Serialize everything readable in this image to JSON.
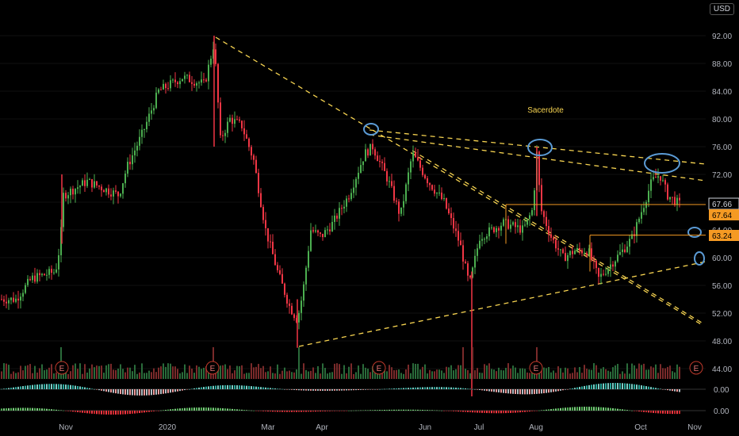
{
  "currency_label": "USD",
  "chart_data": {
    "type": "candlestick",
    "annotation": "Sacerdote",
    "x_ticks": [
      "Nov",
      "2020",
      "Mar",
      "Apr",
      "Jun",
      "Jul",
      "Aug",
      "Oct",
      "Nov"
    ],
    "y_axis": {
      "ticks": [
        "92.00",
        "88.00",
        "84.00",
        "80.00",
        "76.00",
        "72.00",
        "68.00",
        "64.00",
        "60.00",
        "56.00",
        "52.00",
        "48.00",
        "44.00"
      ],
      "ylim": [
        44,
        94
      ]
    },
    "price_labels": [
      {
        "value": 67.66,
        "text": "67.66",
        "style": "outline"
      },
      {
        "value": 67.64,
        "text": "67.64",
        "style": "filled"
      },
      {
        "value": 63.24,
        "text": "63.24",
        "style": "filled"
      }
    ],
    "horizontal_levels": [
      {
        "value": 67.66,
        "from_month": "Jul"
      },
      {
        "value": 63.24,
        "from_month": "Aug"
      }
    ],
    "earnings_markers": {
      "label": "E",
      "months": [
        "Nov",
        "2020",
        "Apr",
        "Aug",
        "Nov"
      ]
    },
    "oscillators": [
      {
        "name": "osc-1",
        "value_label": "0.00"
      },
      {
        "name": "osc-2",
        "value_label": "0.00"
      }
    ],
    "colors": {
      "up": "#4caf50",
      "down": "#f23645",
      "trend": "#f7d451",
      "level": "#f59a23",
      "circle": "#5b9bd5"
    }
  }
}
